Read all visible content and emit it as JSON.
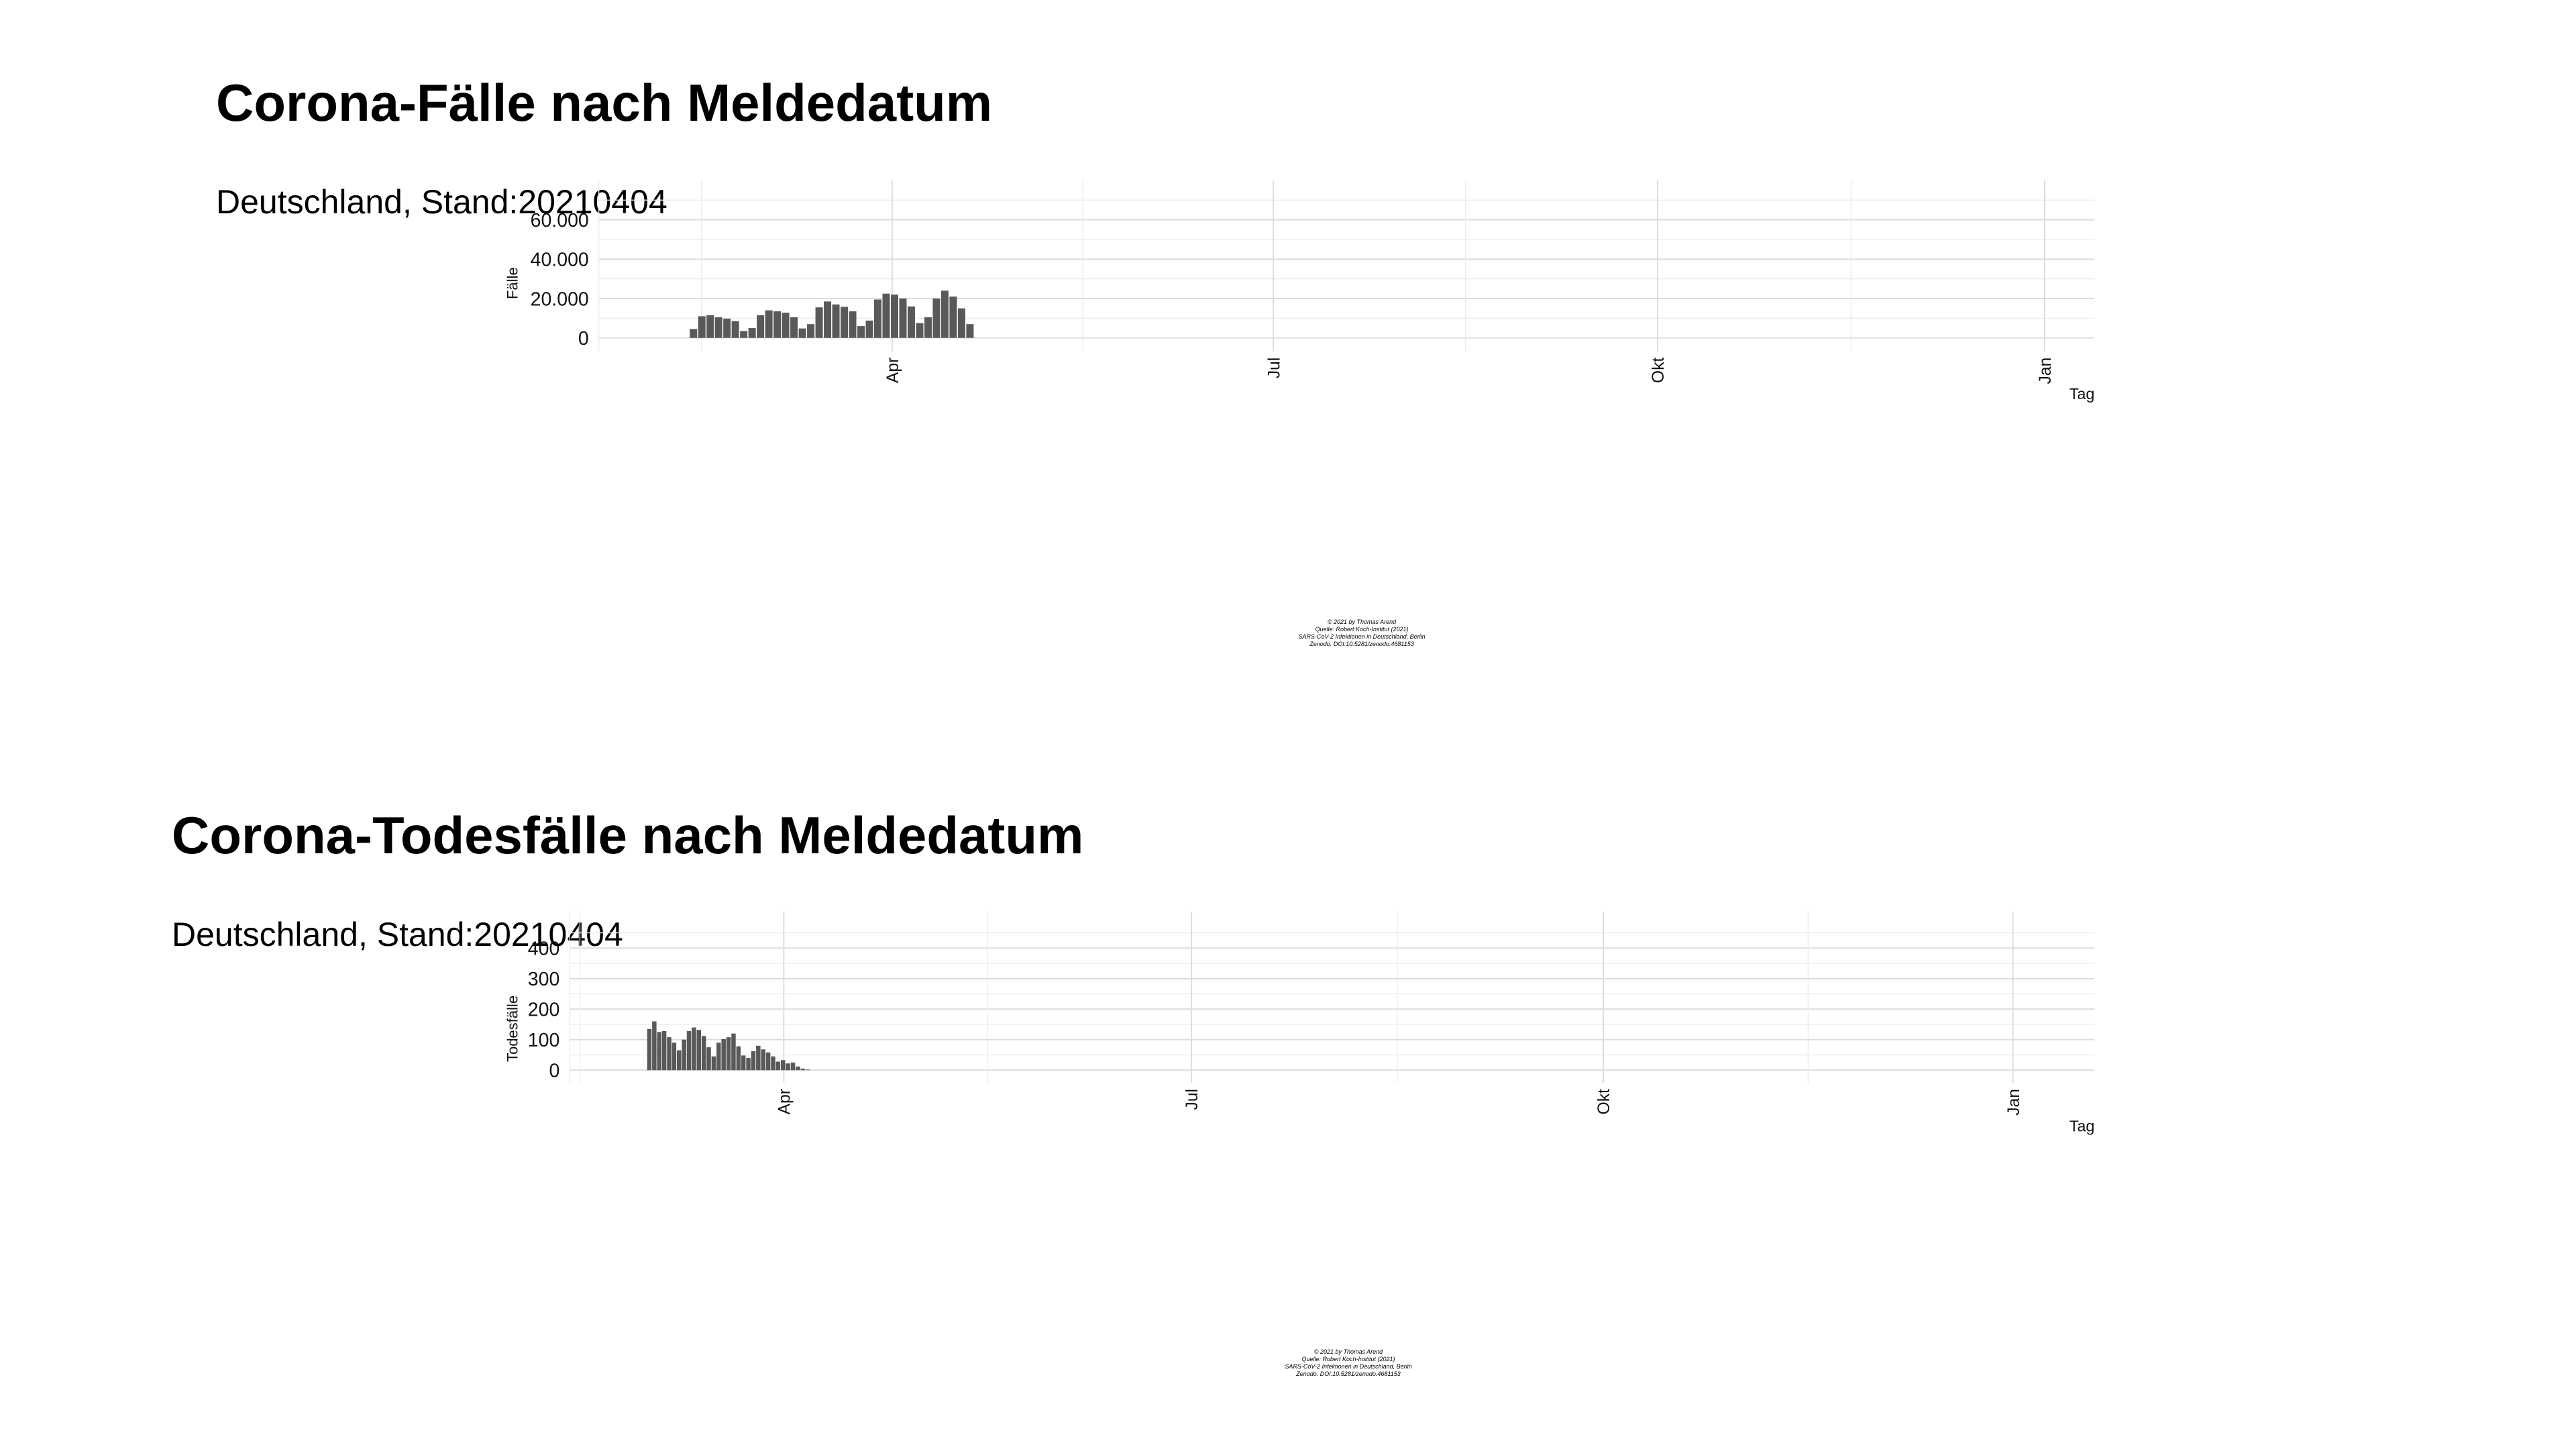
{
  "chart_data": [
    {
      "type": "bar",
      "title": "Corona-Fälle nach Meldedatum",
      "subtitle": "Deutschland, Stand:20210404",
      "xlabel": "Tag",
      "ylabel": "Fälle",
      "x_range_weeks": [
        -10,
        41
      ],
      "x_ticks": [
        {
          "label": "Apr",
          "week": 0
        },
        {
          "label": "Jul",
          "week": 13
        },
        {
          "label": "Okt",
          "week": 26.1
        },
        {
          "label": "Jan",
          "week": 39.3
        }
      ],
      "ylim": [
        -3500,
        80000
      ],
      "y_ticks": [
        0,
        20000,
        40000,
        60000
      ],
      "y_tick_labels": [
        "0",
        "20.000",
        "40.000",
        "60.000"
      ],
      "grid": true,
      "values": [
        4500,
        11000,
        11500,
        10500,
        9800,
        8500,
        3500,
        5000,
        11500,
        14000,
        13500,
        12800,
        10500,
        4800,
        7000,
        15500,
        18500,
        17000,
        15800,
        13500,
        6000,
        8800,
        19500,
        22500,
        22000,
        20000,
        16000,
        7500,
        10500,
        20000,
        24000,
        21000,
        15000,
        7000
      ],
      "bar_color": "#595959",
      "caption": [
        "© 2021 by Thomas Arend",
        "Quelle: Robert Koch-Institut (2021)",
        "SARS-CoV-2 Infektionen in Deutschland, Berlin",
        "Zenodo. DOI:10.5281/zenodo.4681153"
      ]
    },
    {
      "type": "bar",
      "title": "Corona-Todesfälle nach Meldedatum",
      "subtitle": "Deutschland, Stand:20210404",
      "xlabel": "Tag",
      "ylabel": "Todesfälle",
      "x_range_weeks": [
        -10.5,
        64.3
      ],
      "x_ticks": [
        {
          "label": "Apr",
          "week": 0
        },
        {
          "label": "Jul",
          "week": 20
        },
        {
          "label": "Okt",
          "week": 40.2
        },
        {
          "label": "Jan",
          "week": 60.3
        }
      ],
      "ylim": [
        -20,
        520
      ],
      "y_ticks": [
        0,
        100,
        200,
        300,
        400
      ],
      "y_tick_labels": [
        "0",
        "100",
        "200",
        "300",
        "400"
      ],
      "grid": true,
      "values": [
        135,
        160,
        125,
        128,
        108,
        90,
        65,
        100,
        128,
        140,
        132,
        112,
        75,
        45,
        90,
        102,
        108,
        120,
        78,
        48,
        40,
        62,
        80,
        68,
        58,
        45,
        28,
        33,
        22,
        25,
        12,
        5,
        2
      ],
      "bar_color": "#595959",
      "caption": [
        "© 2021 by Thomas Arend",
        "Quelle: Robert Koch-Institut (2021)",
        "SARS-CoV-2 Infektionen in Deutschland, Berlin",
        "Zenodo. DOI:10.5281/zenodo.4681153"
      ]
    }
  ]
}
